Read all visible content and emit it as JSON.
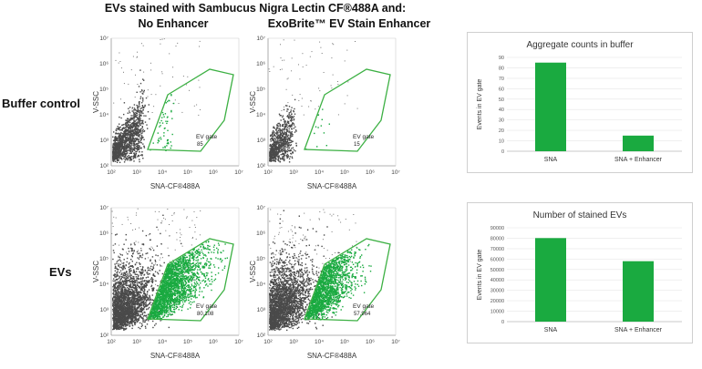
{
  "figure": {
    "title": "EVs stained with Sambucus Nigra Lectin CF®488A and:",
    "columns": [
      "No Enhancer",
      "ExoBrite™ EV Stain Enhancer"
    ],
    "rows": [
      "Buffer control",
      "EVs"
    ]
  },
  "colors": {
    "green": "#1aaa40",
    "gray": "#4a4a4a",
    "gate": "#3cb043"
  },
  "chart_data": [
    {
      "type": "scatter",
      "panel": "buffer-no-enhancer",
      "xlabel": "SNA-CF®488A",
      "ylabel": "V-SSC",
      "x_ticks": [
        "10²",
        "10³",
        "10⁴",
        "10⁵",
        "10⁶",
        "10⁷"
      ],
      "y_ticks": [
        "10²",
        "10³",
        "10⁴",
        "10⁵",
        "10⁶",
        "10⁷"
      ],
      "x_scale": "log",
      "y_scale": "log",
      "gate_label": "EV gate",
      "gate_count": "85"
    },
    {
      "type": "scatter",
      "panel": "buffer-enhancer",
      "xlabel": "SNA-CF®488A",
      "ylabel": "V-SSC",
      "x_ticks": [
        "10²",
        "10³",
        "10⁴",
        "10⁵",
        "10⁶",
        "10⁷"
      ],
      "y_ticks": [
        "10²",
        "10³",
        "10⁴",
        "10⁵",
        "10⁶",
        "10⁷"
      ],
      "x_scale": "log",
      "y_scale": "log",
      "gate_label": "EV gate",
      "gate_count": "15"
    },
    {
      "type": "scatter",
      "panel": "evs-no-enhancer",
      "xlabel": "SNA-CF®488A",
      "ylabel": "V-SSC",
      "x_ticks": [
        "10²",
        "10³",
        "10⁴",
        "10⁵",
        "10⁶",
        "10⁷"
      ],
      "y_ticks": [
        "10²",
        "10³",
        "10⁴",
        "10⁵",
        "10⁶",
        "10⁷"
      ],
      "x_scale": "log",
      "y_scale": "log",
      "gate_label": "EV gate",
      "gate_count": "80,108"
    },
    {
      "type": "scatter",
      "panel": "evs-enhancer",
      "xlabel": "SNA-CF®488A",
      "ylabel": "V-SSC",
      "x_ticks": [
        "10²",
        "10³",
        "10⁴",
        "10⁵",
        "10⁶",
        "10⁷"
      ],
      "y_ticks": [
        "10²",
        "10³",
        "10⁴",
        "10⁵",
        "10⁶",
        "10⁷"
      ],
      "x_scale": "log",
      "y_scale": "log",
      "gate_label": "EV gate",
      "gate_count": "57,964"
    },
    {
      "type": "bar",
      "panel": "aggregate-bar",
      "title": "Aggregate counts in buffer",
      "ylabel": "Events in EV gate",
      "categories": [
        "SNA",
        "SNA + Enhancer"
      ],
      "values": [
        85,
        15
      ],
      "ylim": [
        0,
        90
      ],
      "yticks": [
        0,
        10,
        20,
        30,
        40,
        50,
        60,
        70,
        80,
        90
      ],
      "color": "#1aaa40"
    },
    {
      "type": "bar",
      "panel": "stained-bar",
      "title": "Number of stained EVs",
      "ylabel": "Events in EV gate",
      "categories": [
        "SNA",
        "SNA + Enhancer"
      ],
      "values": [
        80108,
        57964
      ],
      "ylim": [
        0,
        90000
      ],
      "yticks": [
        0,
        10000,
        20000,
        30000,
        40000,
        50000,
        60000,
        70000,
        80000,
        90000
      ],
      "color": "#1aaa40"
    }
  ]
}
